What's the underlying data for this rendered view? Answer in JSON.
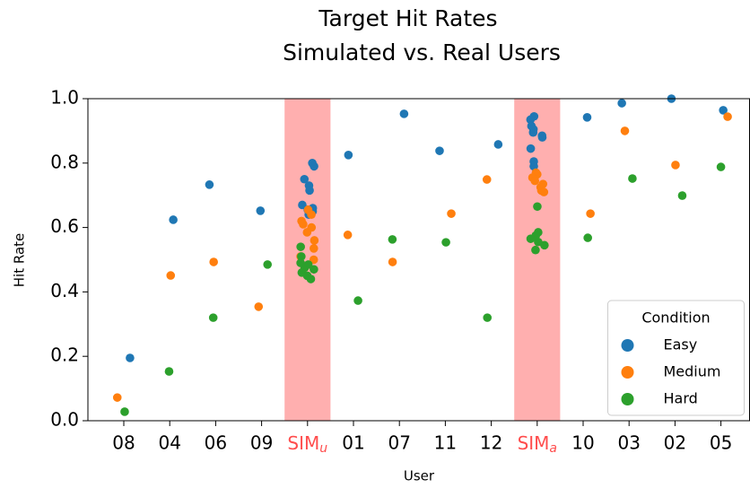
{
  "chart_data": {
    "type": "strip",
    "title": [
      "Target Hit Rates",
      "Simulated vs. Real Users"
    ],
    "x_label": "User",
    "y_label": "Hit Rate",
    "categories": [
      "08",
      "04",
      "06",
      "09",
      "SIMu",
      "01",
      "07",
      "11",
      "12",
      "SIMa",
      "10",
      "03",
      "02",
      "05"
    ],
    "highlight_indices": [
      4,
      9
    ],
    "highlight_color": "#ff4d4d",
    "ylim": [
      0,
      1
    ],
    "yticks": [
      {
        "value": 0,
        "label": "0.0"
      },
      0.2,
      0.4,
      0.6,
      0.8,
      {
        "value": 1,
        "label": "1.0"
      }
    ],
    "legend_title": "Condition",
    "legend_position": "lower right",
    "series": [
      {
        "name": "Easy",
        "color": "#1f77b4",
        "values": [
          [
            0.195
          ],
          [
            0.624
          ],
          [
            0.733
          ],
          [
            0.652
          ],
          [
            0.8,
            0.79,
            0.75,
            0.73,
            0.715,
            0.67,
            0.66,
            0.655,
            0.65,
            0.64
          ],
          [
            0.825
          ],
          [
            0.953
          ],
          [
            0.838
          ],
          [
            0.858
          ],
          [
            0.945,
            0.935,
            0.915,
            0.905,
            0.895,
            0.885,
            0.88,
            0.845,
            0.805,
            0.79
          ],
          [
            0.942
          ],
          [
            0.986
          ],
          [
            1.0
          ],
          [
            0.964
          ]
        ]
      },
      {
        "name": "Medium",
        "color": "#ff7f0e",
        "values": [
          [
            0.072
          ],
          [
            0.451
          ],
          [
            0.493
          ],
          [
            0.354
          ],
          [
            0.655,
            0.64,
            0.62,
            0.61,
            0.6,
            0.585,
            0.56,
            0.535,
            0.51,
            0.5
          ],
          [
            0.577
          ],
          [
            0.493
          ],
          [
            0.643
          ],
          [
            0.749
          ],
          [
            0.77,
            0.765,
            0.755,
            0.745,
            0.735,
            0.725,
            0.715,
            0.71
          ],
          [
            0.643
          ],
          [
            0.9
          ],
          [
            0.794
          ],
          [
            0.944
          ]
        ]
      },
      {
        "name": "Hard",
        "color": "#2ca02c",
        "values": [
          [
            0.028
          ],
          [
            0.153
          ],
          [
            0.32
          ],
          [
            0.485
          ],
          [
            0.54,
            0.51,
            0.49,
            0.485,
            0.475,
            0.47,
            0.46,
            0.45,
            0.44
          ],
          [
            0.373
          ],
          [
            0.563
          ],
          [
            0.554
          ],
          [
            0.32
          ],
          [
            0.665,
            0.585,
            0.575,
            0.565,
            0.555,
            0.545,
            0.53
          ],
          [
            0.568
          ],
          [
            0.752
          ],
          [
            0.699
          ],
          [
            0.788
          ]
        ]
      }
    ]
  }
}
